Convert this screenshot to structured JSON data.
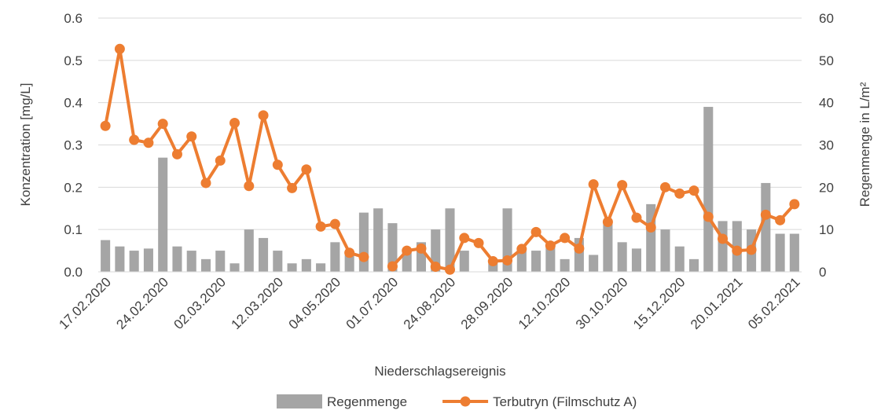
{
  "chart_data": {
    "type": "bar-line",
    "x_label": "Niederschlagsereignis",
    "y_label": "Konzentration [mg/L]",
    "y2_label": "Regenmenge in L/m²",
    "categories": [
      "17.02.2020",
      null,
      null,
      null,
      "24.02.2020",
      null,
      null,
      null,
      "02.03.2020",
      null,
      null,
      null,
      "12.03.2020",
      null,
      null,
      null,
      "04.05.2020",
      null,
      null,
      null,
      "01.07.2020",
      null,
      null,
      null,
      "24.08.2020",
      null,
      null,
      null,
      "28.09.2020",
      null,
      null,
      null,
      "12.10.2020",
      null,
      null,
      null,
      "30.10.2020",
      null,
      null,
      null,
      "15.12.2020",
      null,
      null,
      null,
      "20.01.2021",
      null,
      null,
      null,
      "05.02.2021"
    ],
    "series": [
      {
        "name": "Regenmenge",
        "kind": "bar",
        "axis": "y2",
        "color": "#a5a5a5",
        "values": [
          7.5,
          6,
          5,
          5.5,
          27,
          6,
          5,
          3,
          5,
          2,
          10,
          8,
          5,
          2,
          3,
          2,
          7,
          4,
          14,
          15,
          11.5,
          5,
          7,
          10,
          15,
          5,
          0,
          2,
          15,
          5,
          5,
          6,
          3,
          8,
          4,
          11.5,
          7,
          5.5,
          16,
          10,
          6,
          3,
          39,
          12,
          12,
          10,
          21,
          9,
          9
        ]
      },
      {
        "name": "Terbutryn (Filmschutz A)",
        "kind": "line",
        "axis": "y",
        "color": "#ed7d31",
        "values": [
          0.345,
          0.527,
          0.312,
          0.305,
          0.35,
          0.278,
          0.32,
          0.21,
          0.263,
          0.352,
          0.203,
          0.37,
          0.253,
          0.198,
          0.242,
          0.107,
          0.113,
          0.045,
          0.035,
          null,
          0.013,
          0.05,
          0.055,
          0.012,
          0.005,
          0.08,
          0.068,
          0.025,
          0.027,
          0.054,
          0.094,
          0.062,
          0.08,
          0.055,
          0.207,
          0.118,
          0.205,
          0.128,
          0.105,
          0.2,
          0.185,
          0.192,
          0.13,
          0.078,
          0.05,
          0.052,
          0.135,
          0.122,
          0.16
        ]
      }
    ],
    "ylim": [
      0,
      0.6
    ],
    "yticks": [
      {
        "value": 0,
        "label": "0.0"
      },
      0.1,
      0.2,
      0.3,
      0.4,
      0.5,
      0.6
    ],
    "y2lim": [
      0,
      60
    ],
    "y2ticks": [
      0,
      10,
      20,
      30,
      40,
      50,
      60
    ],
    "grid": true,
    "legend": "bottom"
  }
}
